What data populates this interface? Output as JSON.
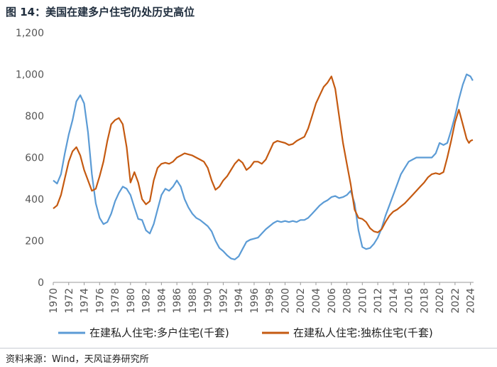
{
  "title": "图 14：美国在建多户住宅仍处历史高位",
  "source": "资料来源：Wind，天风证券研究所",
  "chart_data": {
    "type": "line",
    "ylim": [
      0,
      1200
    ],
    "xlim": [
      1970,
      2024.4
    ],
    "yticks": [
      0,
      200,
      400,
      600,
      800,
      1000,
      1200
    ],
    "ytick_labels": [
      "0",
      "200",
      "400",
      "600",
      "800",
      "1,000",
      "1,200"
    ],
    "xticks": [
      "1970",
      "1972",
      "1974",
      "1976",
      "1978",
      "1980",
      "1982",
      "1984",
      "1986",
      "1988",
      "1990",
      "1992",
      "1994",
      "1996",
      "1998",
      "2000",
      "2002",
      "2004",
      "2006",
      "2008",
      "2010",
      "2012",
      "2014",
      "2016",
      "2018",
      "2020",
      "2022",
      "2024"
    ],
    "legend_position": "bottom",
    "series": [
      {
        "name": "在建私人住宅:多户住宅(千套)",
        "color": "#5b9bd5",
        "points": [
          [
            1970,
            490
          ],
          [
            1970.5,
            475
          ],
          [
            1971,
            520
          ],
          [
            1971.5,
            620
          ],
          [
            1972,
            710
          ],
          [
            1972.5,
            780
          ],
          [
            1973,
            870
          ],
          [
            1973.5,
            900
          ],
          [
            1974,
            860
          ],
          [
            1974.5,
            720
          ],
          [
            1975,
            520
          ],
          [
            1975.5,
            380
          ],
          [
            1976,
            310
          ],
          [
            1976.5,
            280
          ],
          [
            1977,
            290
          ],
          [
            1977.5,
            330
          ],
          [
            1978,
            390
          ],
          [
            1978.5,
            430
          ],
          [
            1979,
            460
          ],
          [
            1979.5,
            450
          ],
          [
            1980,
            420
          ],
          [
            1980.5,
            360
          ],
          [
            1981,
            305
          ],
          [
            1981.5,
            300
          ],
          [
            1982,
            250
          ],
          [
            1982.5,
            235
          ],
          [
            1983,
            280
          ],
          [
            1983.5,
            350
          ],
          [
            1984,
            420
          ],
          [
            1984.5,
            450
          ],
          [
            1985,
            440
          ],
          [
            1985.5,
            460
          ],
          [
            1986,
            490
          ],
          [
            1986.5,
            460
          ],
          [
            1987,
            400
          ],
          [
            1987.5,
            360
          ],
          [
            1988,
            330
          ],
          [
            1988.5,
            310
          ],
          [
            1989,
            300
          ],
          [
            1989.5,
            285
          ],
          [
            1990,
            270
          ],
          [
            1990.5,
            245
          ],
          [
            1991,
            200
          ],
          [
            1991.5,
            165
          ],
          [
            1992,
            150
          ],
          [
            1992.5,
            130
          ],
          [
            1993,
            115
          ],
          [
            1993.5,
            110
          ],
          [
            1994,
            125
          ],
          [
            1994.5,
            160
          ],
          [
            1995,
            195
          ],
          [
            1995.5,
            205
          ],
          [
            1996,
            210
          ],
          [
            1996.5,
            215
          ],
          [
            1997,
            235
          ],
          [
            1997.5,
            255
          ],
          [
            1998,
            270
          ],
          [
            1998.5,
            285
          ],
          [
            1999,
            295
          ],
          [
            1999.5,
            290
          ],
          [
            2000,
            295
          ],
          [
            2000.5,
            290
          ],
          [
            2001,
            295
          ],
          [
            2001.5,
            290
          ],
          [
            2002,
            300
          ],
          [
            2002.5,
            300
          ],
          [
            2003,
            310
          ],
          [
            2003.5,
            330
          ],
          [
            2004,
            350
          ],
          [
            2004.5,
            370
          ],
          [
            2005,
            385
          ],
          [
            2005.5,
            395
          ],
          [
            2006,
            410
          ],
          [
            2006.5,
            415
          ],
          [
            2007,
            405
          ],
          [
            2007.5,
            410
          ],
          [
            2008,
            420
          ],
          [
            2008.5,
            440
          ],
          [
            2009,
            380
          ],
          [
            2009.5,
            250
          ],
          [
            2010,
            170
          ],
          [
            2010.5,
            160
          ],
          [
            2011,
            165
          ],
          [
            2011.5,
            185
          ],
          [
            2012,
            215
          ],
          [
            2012.5,
            260
          ],
          [
            2013,
            320
          ],
          [
            2013.5,
            370
          ],
          [
            2014,
            420
          ],
          [
            2014.5,
            470
          ],
          [
            2015,
            520
          ],
          [
            2015.5,
            550
          ],
          [
            2016,
            580
          ],
          [
            2016.5,
            590
          ],
          [
            2017,
            600
          ],
          [
            2017.5,
            600
          ],
          [
            2018,
            600
          ],
          [
            2018.5,
            600
          ],
          [
            2019,
            600
          ],
          [
            2019.5,
            620
          ],
          [
            2020,
            670
          ],
          [
            2020.5,
            660
          ],
          [
            2021,
            670
          ],
          [
            2021.5,
            730
          ],
          [
            2022,
            800
          ],
          [
            2022.5,
            880
          ],
          [
            2023,
            950
          ],
          [
            2023.5,
            1000
          ],
          [
            2024,
            990
          ],
          [
            2024.3,
            970
          ]
        ]
      },
      {
        "name": "在建私人住宅:独栋住宅(千套)",
        "color": "#c55a11",
        "points": [
          [
            1970,
            355
          ],
          [
            1970.5,
            370
          ],
          [
            1971,
            420
          ],
          [
            1971.5,
            500
          ],
          [
            1972,
            580
          ],
          [
            1972.5,
            630
          ],
          [
            1973,
            650
          ],
          [
            1973.5,
            610
          ],
          [
            1974,
            540
          ],
          [
            1974.5,
            490
          ],
          [
            1975,
            440
          ],
          [
            1975.5,
            450
          ],
          [
            1976,
            510
          ],
          [
            1976.5,
            580
          ],
          [
            1977,
            680
          ],
          [
            1977.5,
            760
          ],
          [
            1978,
            780
          ],
          [
            1978.5,
            790
          ],
          [
            1979,
            760
          ],
          [
            1979.5,
            650
          ],
          [
            1980,
            480
          ],
          [
            1980.5,
            530
          ],
          [
            1981,
            480
          ],
          [
            1981.5,
            400
          ],
          [
            1982,
            375
          ],
          [
            1982.5,
            390
          ],
          [
            1983,
            490
          ],
          [
            1983.5,
            550
          ],
          [
            1984,
            570
          ],
          [
            1984.5,
            575
          ],
          [
            1985,
            570
          ],
          [
            1985.5,
            580
          ],
          [
            1986,
            600
          ],
          [
            1986.5,
            610
          ],
          [
            1987,
            620
          ],
          [
            1987.5,
            615
          ],
          [
            1988,
            610
          ],
          [
            1988.5,
            600
          ],
          [
            1989,
            590
          ],
          [
            1989.5,
            580
          ],
          [
            1990,
            550
          ],
          [
            1990.5,
            490
          ],
          [
            1991,
            445
          ],
          [
            1991.5,
            460
          ],
          [
            1992,
            490
          ],
          [
            1992.5,
            510
          ],
          [
            1993,
            540
          ],
          [
            1993.5,
            570
          ],
          [
            1994,
            590
          ],
          [
            1994.5,
            575
          ],
          [
            1995,
            540
          ],
          [
            1995.5,
            555
          ],
          [
            1996,
            580
          ],
          [
            1996.5,
            580
          ],
          [
            1997,
            570
          ],
          [
            1997.5,
            590
          ],
          [
            1998,
            630
          ],
          [
            1998.5,
            670
          ],
          [
            1999,
            680
          ],
          [
            1999.5,
            675
          ],
          [
            2000,
            670
          ],
          [
            2000.5,
            660
          ],
          [
            2001,
            665
          ],
          [
            2001.5,
            680
          ],
          [
            2002,
            690
          ],
          [
            2002.5,
            700
          ],
          [
            2003,
            740
          ],
          [
            2003.5,
            800
          ],
          [
            2004,
            860
          ],
          [
            2004.5,
            900
          ],
          [
            2005,
            940
          ],
          [
            2005.5,
            960
          ],
          [
            2006,
            990
          ],
          [
            2006.5,
            930
          ],
          [
            2007,
            800
          ],
          [
            2007.5,
            670
          ],
          [
            2008,
            570
          ],
          [
            2008.5,
            470
          ],
          [
            2009,
            350
          ],
          [
            2009.5,
            310
          ],
          [
            2010,
            305
          ],
          [
            2010.5,
            290
          ],
          [
            2011,
            260
          ],
          [
            2011.5,
            245
          ],
          [
            2012,
            240
          ],
          [
            2012.5,
            255
          ],
          [
            2013,
            290
          ],
          [
            2013.5,
            320
          ],
          [
            2014,
            340
          ],
          [
            2014.5,
            350
          ],
          [
            2015,
            365
          ],
          [
            2015.5,
            380
          ],
          [
            2016,
            400
          ],
          [
            2016.5,
            420
          ],
          [
            2017,
            440
          ],
          [
            2017.5,
            460
          ],
          [
            2018,
            480
          ],
          [
            2018.5,
            505
          ],
          [
            2019,
            520
          ],
          [
            2019.5,
            525
          ],
          [
            2020,
            520
          ],
          [
            2020.5,
            530
          ],
          [
            2021,
            600
          ],
          [
            2021.5,
            680
          ],
          [
            2022,
            770
          ],
          [
            2022.5,
            830
          ],
          [
            2023,
            760
          ],
          [
            2023.5,
            690
          ],
          [
            2023.8,
            670
          ],
          [
            2024,
            680
          ],
          [
            2024.3,
            685
          ]
        ]
      }
    ]
  }
}
